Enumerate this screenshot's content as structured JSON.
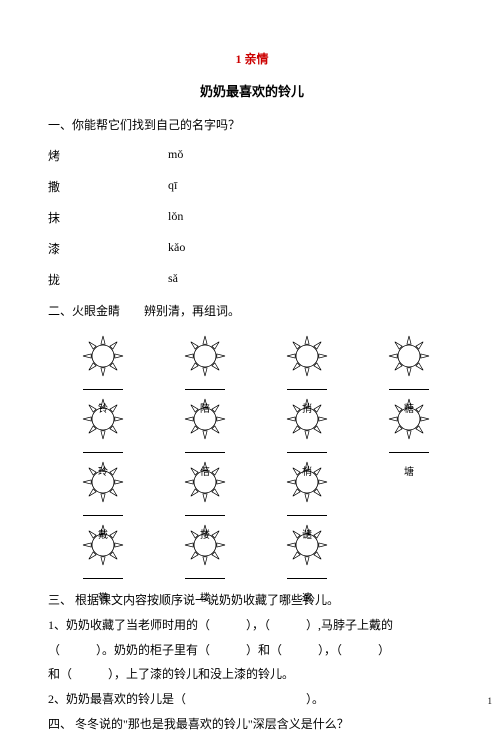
{
  "chapter": {
    "label": "1 亲情",
    "color": "#cc0000"
  },
  "subtitle": "奶奶最喜欢的铃儿",
  "section1": {
    "heading": "一、你能帮它们找到自己的名字吗？",
    "pairs": [
      {
        "left": "烤",
        "right": "mǒ"
      },
      {
        "left": "撒",
        "right": "qī"
      },
      {
        "left": "抹",
        "right": "lǒn"
      },
      {
        "left": "漆",
        "right": "kǎo"
      },
      {
        "left": "拢",
        "right": "sǎ"
      }
    ]
  },
  "section2": {
    "heading": "二、火眼金睛　　辨别清，再组词。",
    "rows": [
      [
        "铃",
        "陪",
        "捎",
        "糖"
      ],
      [
        "玲",
        "倍",
        "梢",
        "塘"
      ],
      [
        "戴",
        "搂",
        "谴",
        ""
      ],
      [
        "带",
        "楼",
        "遣",
        ""
      ]
    ]
  },
  "section3": {
    "heading": "三、 根据课文内容按顺序说一说奶奶收藏了哪些铃儿。",
    "line1a": "1、奶奶收藏了当老师时用的（　　　），（　　　）,马脖子上戴的",
    "line1b": "（　　　）。奶奶的柜子里有（　　　）和（　　　），（　　　）",
    "line1c": "和（　　　），上了漆的铃儿和没上漆的铃儿。",
    "line2": "2、奶奶最喜欢的铃儿是（　　　　　　　　　　）。"
  },
  "section4": {
    "heading": "四、 冬冬说的\"那也是我最喜欢的铃儿\"深层含义是什么？"
  },
  "page_number": "1"
}
